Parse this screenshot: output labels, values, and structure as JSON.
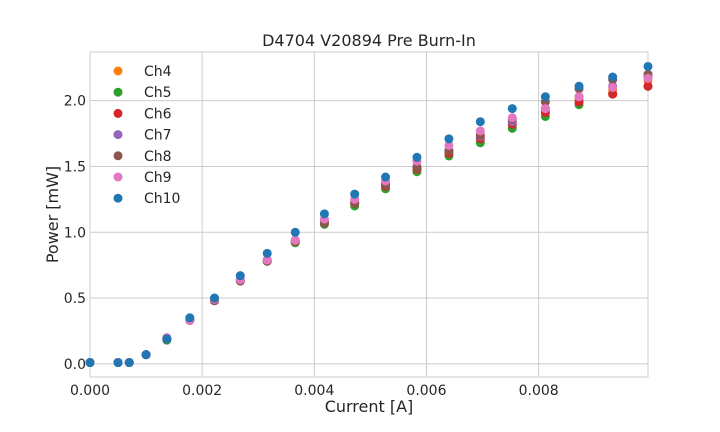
{
  "chart_data": {
    "type": "scatter",
    "title": "D4704 V20894 Pre Burn-In",
    "xlabel": "Current [A]",
    "ylabel": "Power [mW]",
    "xlim": [
      0.0,
      0.00995
    ],
    "ylim": [
      -0.1,
      2.37
    ],
    "xticks": [
      0.0,
      0.002,
      0.004,
      0.006,
      0.008
    ],
    "xtick_labels": [
      "0.000",
      "0.002",
      "0.004",
      "0.006",
      "0.008"
    ],
    "yticks": [
      0.0,
      0.5,
      1.0,
      1.5,
      2.0
    ],
    "ytick_labels": [
      "0.0",
      "0.5",
      "1.0",
      "1.5",
      "2.0"
    ],
    "grid": true,
    "legend_position": "top-left",
    "x": [
      0.0,
      0.0005,
      0.0007,
      0.001,
      0.00137,
      0.00178,
      0.00222,
      0.00268,
      0.00316,
      0.00366,
      0.00418,
      0.00472,
      0.00527,
      0.00583,
      0.0064,
      0.00696,
      0.00753,
      0.00812,
      0.00872,
      0.00932,
      0.00995
    ],
    "series": [
      {
        "name": "Ch4",
        "color": "#ff7f0e",
        "values": [
          0.01,
          0.01,
          0.01,
          0.07,
          0.19,
          0.34,
          0.49,
          0.64,
          0.79,
          0.93,
          1.08,
          1.23,
          1.36,
          1.49,
          1.61,
          1.72,
          1.83,
          1.92,
          2.01,
          2.08,
          2.15
        ]
      },
      {
        "name": "Ch5",
        "color": "#2ca02c",
        "values": [
          0.01,
          0.01,
          0.01,
          0.07,
          0.18,
          0.33,
          0.48,
          0.63,
          0.78,
          0.92,
          1.06,
          1.2,
          1.33,
          1.46,
          1.58,
          1.68,
          1.79,
          1.88,
          1.97,
          2.05,
          2.11
        ]
      },
      {
        "name": "Ch6",
        "color": "#d62728",
        "values": [
          0.01,
          0.01,
          0.01,
          0.07,
          0.19,
          0.33,
          0.48,
          0.63,
          0.78,
          0.93,
          1.07,
          1.22,
          1.35,
          1.48,
          1.6,
          1.71,
          1.82,
          1.91,
          1.99,
          2.05,
          2.11
        ]
      },
      {
        "name": "Ch7",
        "color": "#9467bd",
        "values": [
          0.01,
          0.01,
          0.01,
          0.07,
          0.19,
          0.34,
          0.48,
          0.64,
          0.79,
          0.94,
          1.08,
          1.23,
          1.37,
          1.5,
          1.62,
          1.73,
          1.84,
          1.94,
          2.03,
          2.11,
          2.18
        ]
      },
      {
        "name": "Ch8",
        "color": "#8c564b",
        "values": [
          0.01,
          0.01,
          0.01,
          0.07,
          0.19,
          0.33,
          0.48,
          0.63,
          0.78,
          0.93,
          1.07,
          1.22,
          1.36,
          1.49,
          1.62,
          1.74,
          1.86,
          1.99,
          2.09,
          2.16,
          2.2
        ]
      },
      {
        "name": "Ch9",
        "color": "#e377c2",
        "values": [
          0.01,
          0.01,
          0.01,
          0.07,
          0.2,
          0.33,
          0.49,
          0.64,
          0.79,
          0.94,
          1.1,
          1.25,
          1.39,
          1.54,
          1.66,
          1.77,
          1.87,
          1.94,
          2.03,
          2.1,
          2.17
        ]
      },
      {
        "name": "Ch10",
        "color": "#1f77b4",
        "values": [
          0.01,
          0.01,
          0.01,
          0.07,
          0.19,
          0.35,
          0.5,
          0.67,
          0.84,
          1.0,
          1.14,
          1.29,
          1.42,
          1.57,
          1.71,
          1.84,
          1.94,
          2.03,
          2.11,
          2.18,
          2.26
        ]
      }
    ]
  }
}
